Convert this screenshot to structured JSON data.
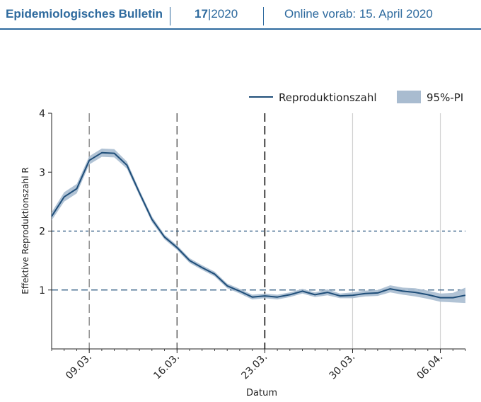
{
  "header": {
    "journal": "Epidemiologisches Bulletin",
    "issue_number": "17",
    "issue_year": "2020",
    "online_label": "Online vorab: 15. April 2020",
    "accent_color": "#2e6a9e"
  },
  "chart_data": {
    "type": "line",
    "ylabel": "Effektive Reproduktionszahl R",
    "xlabel": "Datum",
    "legend": {
      "line": "Reproduktionszahl",
      "band": "95%-PI",
      "placement": "top-right"
    },
    "ylim": [
      0,
      4
    ],
    "yticks": [
      1,
      2,
      3,
      4
    ],
    "xlim": [
      "2020-03-06",
      "2020-04-08"
    ],
    "xticks": [
      {
        "date": "2020-03-09",
        "label": "09.03."
      },
      {
        "date": "2020-03-16",
        "label": "16.03."
      },
      {
        "date": "2020-03-23",
        "label": "23.03."
      },
      {
        "date": "2020-03-30",
        "label": "30.03."
      },
      {
        "date": "2020-04-06",
        "label": "06.04."
      }
    ],
    "reference_lines": [
      1,
      2
    ],
    "line_color": "#1f4e79",
    "band_color": "#a9bcd0",
    "series": [
      {
        "x": [
          "2020-03-06",
          "2020-03-07",
          "2020-03-08",
          "2020-03-09",
          "2020-03-10",
          "2020-03-11",
          "2020-03-12",
          "2020-03-13",
          "2020-03-14",
          "2020-03-15",
          "2020-03-16",
          "2020-03-17",
          "2020-03-18",
          "2020-03-19",
          "2020-03-20",
          "2020-03-21",
          "2020-03-22",
          "2020-03-23",
          "2020-03-24",
          "2020-03-25",
          "2020-03-26",
          "2020-03-27",
          "2020-03-28",
          "2020-03-29",
          "2020-03-30",
          "2020-03-31",
          "2020-04-01",
          "2020-04-02",
          "2020-04-03",
          "2020-04-04",
          "2020-04-05",
          "2020-04-06",
          "2020-04-07",
          "2020-04-08"
        ],
        "y": [
          2.25,
          2.58,
          2.72,
          3.2,
          3.33,
          3.32,
          3.12,
          2.65,
          2.2,
          1.9,
          1.72,
          1.5,
          1.38,
          1.27,
          1.07,
          0.98,
          0.88,
          0.9,
          0.88,
          0.92,
          0.98,
          0.92,
          0.96,
          0.9,
          0.91,
          0.94,
          0.95,
          1.02,
          0.98,
          0.96,
          0.92,
          0.87,
          0.87,
          0.91
        ],
        "lower": [
          2.18,
          2.5,
          2.64,
          3.13,
          3.26,
          3.25,
          3.06,
          2.6,
          2.15,
          1.86,
          1.68,
          1.46,
          1.34,
          1.23,
          1.03,
          0.94,
          0.84,
          0.86,
          0.84,
          0.88,
          0.94,
          0.88,
          0.91,
          0.86,
          0.86,
          0.89,
          0.9,
          0.96,
          0.92,
          0.89,
          0.85,
          0.8,
          0.79,
          0.78
        ],
        "upper": [
          2.32,
          2.66,
          2.8,
          3.27,
          3.4,
          3.39,
          3.18,
          2.7,
          2.25,
          1.94,
          1.76,
          1.54,
          1.42,
          1.31,
          1.11,
          1.02,
          0.92,
          0.94,
          0.92,
          0.96,
          1.02,
          0.96,
          1.01,
          0.94,
          0.96,
          0.99,
          1.0,
          1.08,
          1.04,
          1.03,
          0.99,
          0.94,
          0.95,
          1.04
        ]
      }
    ]
  }
}
